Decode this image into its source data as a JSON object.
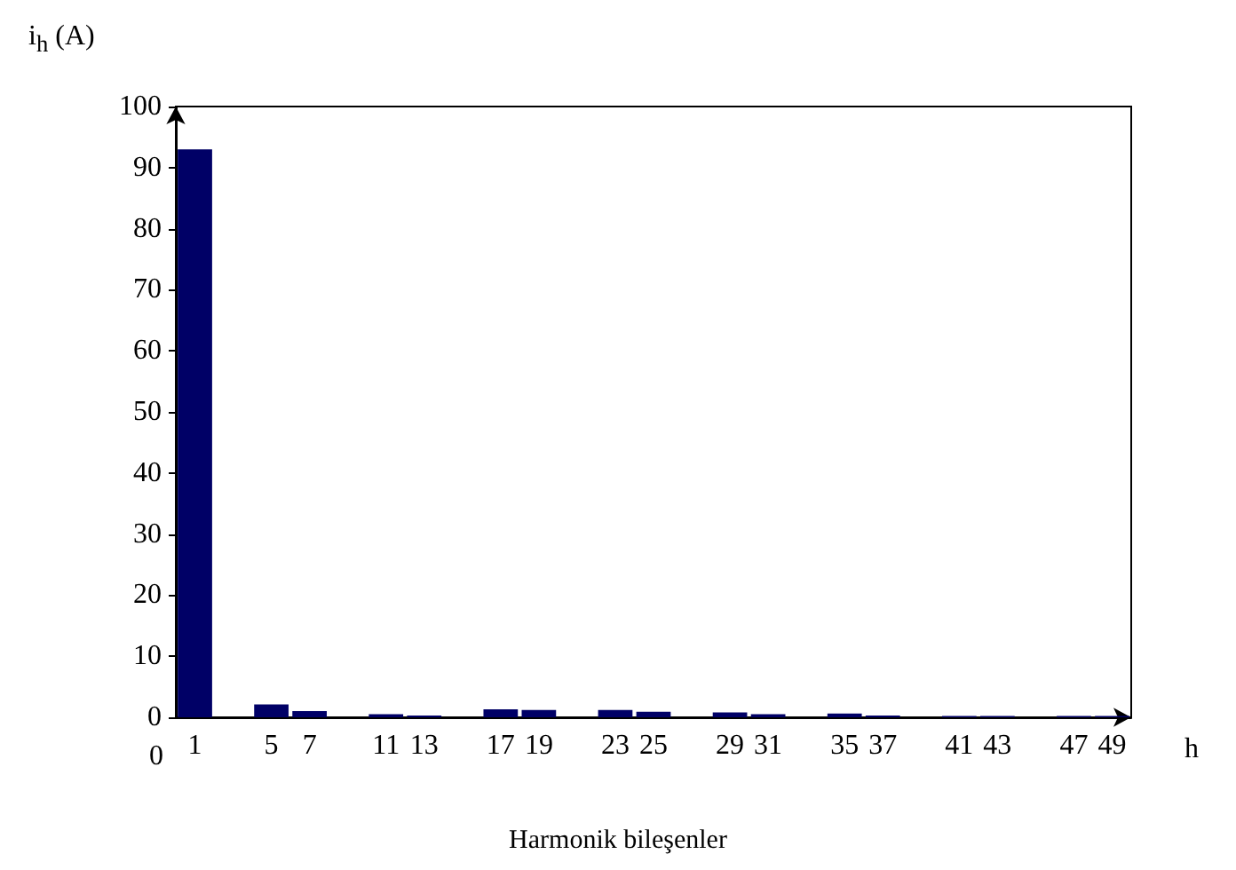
{
  "chart_data": {
    "type": "bar",
    "xlabel": "h",
    "ylabel": "i$_{h}$ (A)",
    "annotations": [
      "0",
      "Harmonik bileşenler"
    ],
    "categories": [
      "1",
      null,
      "5",
      "7",
      null,
      "11",
      "13",
      null,
      "17",
      "19",
      null,
      "23",
      "25",
      null,
      "29",
      "31",
      null,
      "35",
      "37",
      null,
      "41",
      "43",
      null,
      "47",
      "49"
    ],
    "values": [
      93,
      null,
      2.1,
      1.0,
      null,
      0.5,
      0.3,
      null,
      1.3,
      1.2,
      null,
      1.2,
      0.9,
      null,
      0.8,
      0.5,
      null,
      0.6,
      0.3,
      null,
      0.2,
      0.2,
      null,
      0.2,
      0.2
    ],
    "color": "#000066",
    "ylim": [
      0,
      100
    ],
    "yticks": [
      0,
      10,
      20,
      30,
      40,
      50,
      60,
      70,
      80,
      90,
      100
    ],
    "grid": false
  }
}
